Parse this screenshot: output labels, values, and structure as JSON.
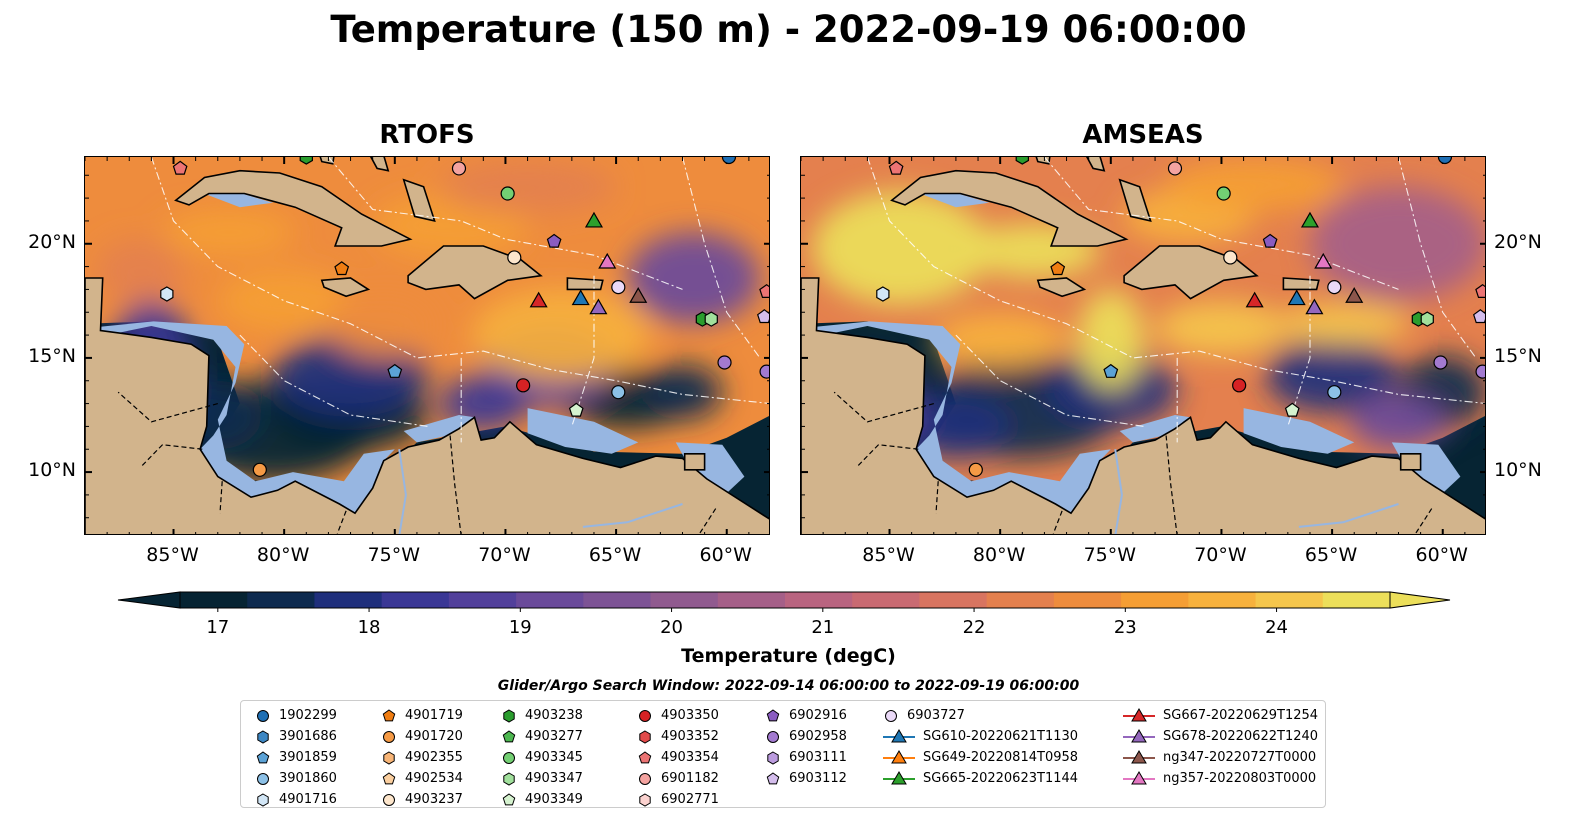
{
  "title": "Temperature (150 m) - 2022-09-19 06:00:00",
  "panels": [
    {
      "title": "RTOFS"
    },
    {
      "title": "AMSEAS"
    }
  ],
  "axes": {
    "lon_ticks": [
      "85°W",
      "80°W",
      "75°W",
      "70°W",
      "65°W",
      "60°W"
    ],
    "lat_ticks": [
      "20°N",
      "15°N",
      "10°N"
    ]
  },
  "colorbar": {
    "label": "Temperature (degC)",
    "ticks": [
      "17",
      "18",
      "19",
      "20",
      "21",
      "22",
      "23",
      "24"
    ],
    "range": [
      16.75,
      24.75
    ],
    "colors": [
      "#062433",
      "#0d2a4f",
      "#1f2f7c",
      "#3a3795",
      "#52409b",
      "#6a4a9a",
      "#7d5395",
      "#905a8f",
      "#a55f88",
      "#b96480",
      "#c96a72",
      "#d87460",
      "#e4804e",
      "#ee8c3d",
      "#f59e34",
      "#f7b13d",
      "#f5c64c",
      "#ecdf5a"
    ],
    "extend": "both"
  },
  "legend": {
    "title": "Glider/Argo Search Window: 2022-09-14 06:00:00 to 2022-09-19 06:00:00",
    "columns": [
      [
        {
          "label": "1902299",
          "marker": "circle",
          "color": "#1f6fb4"
        },
        {
          "label": "3901686",
          "marker": "hexagon",
          "color": "#3d87c3"
        },
        {
          "label": "3901859",
          "marker": "pentagon",
          "color": "#5ba2d6"
        },
        {
          "label": "3901860",
          "marker": "circle",
          "color": "#8cc0e6"
        },
        {
          "label": "4901716",
          "marker": "hexagon",
          "color": "#d2e6f6"
        }
      ],
      [
        {
          "label": "4901719",
          "marker": "pentagon",
          "color": "#f07d12"
        },
        {
          "label": "4901720",
          "marker": "circle",
          "color": "#f59a45"
        },
        {
          "label": "4902355",
          "marker": "hexagon",
          "color": "#f8b577"
        },
        {
          "label": "4902534",
          "marker": "pentagon",
          "color": "#fbcf9f"
        },
        {
          "label": "4903237",
          "marker": "circle",
          "color": "#fde6cc"
        }
      ],
      [
        {
          "label": "4903238",
          "marker": "hexagon",
          "color": "#2a9d2e"
        },
        {
          "label": "4903277",
          "marker": "pentagon",
          "color": "#4db750"
        },
        {
          "label": "4903345",
          "marker": "circle",
          "color": "#73cf73"
        },
        {
          "label": "4903347",
          "marker": "hexagon",
          "color": "#a1e09c"
        },
        {
          "label": "4903349",
          "marker": "pentagon",
          "color": "#d5f2cf"
        }
      ],
      [
        {
          "label": "4903350",
          "marker": "circle",
          "color": "#d62224"
        },
        {
          "label": "4903352",
          "marker": "hexagon",
          "color": "#e24a4a"
        },
        {
          "label": "4903354",
          "marker": "pentagon",
          "color": "#ec7474"
        },
        {
          "label": "6901182",
          "marker": "circle",
          "color": "#f4a3a0"
        },
        {
          "label": "6902771",
          "marker": "hexagon",
          "color": "#fbd2cf"
        }
      ],
      [
        {
          "label": "6902916",
          "marker": "pentagon",
          "color": "#8a5cc0"
        },
        {
          "label": "6902958",
          "marker": "circle",
          "color": "#a37ad0"
        },
        {
          "label": "6903111",
          "marker": "hexagon",
          "color": "#bb9bde"
        },
        {
          "label": "6903112",
          "marker": "pentagon",
          "color": "#d4bdec"
        },
        {
          "label": "",
          "marker": "none",
          "color": ""
        }
      ],
      [
        {
          "label": "6903727",
          "marker": "circle",
          "color": "#ead9f7"
        },
        {
          "label": "SG610-20220621T1130",
          "marker": "triangle",
          "color": "#1f77b4"
        },
        {
          "label": "SG649-20220814T0958",
          "marker": "triangle",
          "color": "#ff7f0e"
        },
        {
          "label": "SG665-20220623T1144",
          "marker": "triangle",
          "color": "#2ca02c"
        },
        {
          "label": "",
          "marker": "none",
          "color": ""
        }
      ],
      [
        {
          "label": "SG667-20220629T1254",
          "marker": "triangle",
          "color": "#d62728"
        },
        {
          "label": "SG678-20220622T1240",
          "marker": "triangle",
          "color": "#9467bd"
        },
        {
          "label": "ng347-20220727T0000",
          "marker": "triangle",
          "color": "#8c564b"
        },
        {
          "label": "ng357-20220803T0000",
          "marker": "triangle",
          "color": "#e377c2"
        },
        {
          "label": "",
          "marker": "none",
          "color": ""
        }
      ]
    ]
  },
  "map": {
    "lon_range": [
      -89,
      -58
    ],
    "lat_range": [
      7.2,
      23.8
    ],
    "land_color": "#d2b48c",
    "shallow_color": "#97b6e1",
    "deep_color": "#062433",
    "observations": [
      {
        "id": "1902299",
        "lon": -59.9,
        "lat": 23.8
      },
      {
        "id": "4903238",
        "lon": -79.0,
        "lat": 23.8
      },
      {
        "id": "4903345",
        "lon": -69.9,
        "lat": 22.2
      },
      {
        "id": "4903354",
        "lon": -84.7,
        "lat": 23.3
      },
      {
        "id": "6901182",
        "lon": -72.1,
        "lat": 23.3
      },
      {
        "id": "6902916",
        "lon": -67.8,
        "lat": 20.1
      },
      {
        "id": "4901719",
        "lon": -77.4,
        "lat": 18.9
      },
      {
        "id": "4903237",
        "lon": -69.6,
        "lat": 19.4
      },
      {
        "id": "4901716",
        "lon": -85.3,
        "lat": 17.8
      },
      {
        "id": "6903727",
        "lon": -64.9,
        "lat": 18.1
      },
      {
        "id": "4903238b",
        "lon": -61.1,
        "lat": 16.7
      },
      {
        "id": "4903347",
        "lon": -60.7,
        "lat": 16.7
      },
      {
        "id": "6903112",
        "lon": -58.3,
        "lat": 16.8
      },
      {
        "id": "4903354b",
        "lon": -58.2,
        "lat": 17.9
      },
      {
        "id": "6902958",
        "lon": -60.1,
        "lat": 14.8
      },
      {
        "id": "6902958b",
        "lon": -58.2,
        "lat": 14.4
      },
      {
        "id": "3901859",
        "lon": -75.0,
        "lat": 14.4
      },
      {
        "id": "4903350",
        "lon": -69.2,
        "lat": 13.8
      },
      {
        "id": "3901860",
        "lon": -64.9,
        "lat": 13.5
      },
      {
        "id": "4903349",
        "lon": -66.8,
        "lat": 12.7
      },
      {
        "id": "4901720",
        "lon": -81.1,
        "lat": 10.1
      }
    ],
    "gliders": [
      {
        "id": "SG665-20220623T1144",
        "lon": -66.0,
        "lat": 21.0
      },
      {
        "id": "ng357-20220803T0000",
        "lon": -65.4,
        "lat": 19.2
      },
      {
        "id": "SG667-20220629T1254",
        "lon": -68.5,
        "lat": 17.5
      },
      {
        "id": "SG610-20220621T1130",
        "lon": -66.6,
        "lat": 17.6
      },
      {
        "id": "SG678-20220622T1240",
        "lon": -65.8,
        "lat": 17.2
      },
      {
        "id": "ng347-20220727T0000",
        "lon": -64.0,
        "lat": 17.7
      }
    ]
  }
}
